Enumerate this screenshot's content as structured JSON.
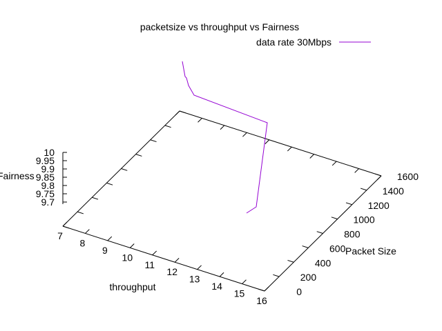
{
  "chart_data": {
    "type": "line",
    "projection": "3d",
    "title": "packetsize vs throughput vs Fairness",
    "xlabel": "throughput",
    "ylabel": "Packet Size",
    "zlabel": "Fairness",
    "xlim": [
      7,
      16
    ],
    "ylim": [
      0,
      1600
    ],
    "zlim": [
      9.65,
      10
    ],
    "x_ticks": [
      "7",
      "8",
      "9",
      "10",
      "11",
      "12",
      "13",
      "14",
      "15",
      "16"
    ],
    "y_ticks": [
      "0",
      "200",
      "400",
      "600",
      "800",
      "1000",
      "1200",
      "1400",
      "1600"
    ],
    "z_ticks": [
      "9.7",
      "9.75",
      "9.8",
      "9.85",
      "9.9",
      "9.95",
      "10"
    ],
    "legend_position": "top-right",
    "grid": false,
    "colors": {
      "series": "#9400d3",
      "axes": "#000000",
      "background": "#ffffff"
    },
    "series": [
      {
        "name": "data rate 30Mbps",
        "points": [
          {
            "x": 10.7,
            "y": 0,
            "z": 10.13
          },
          {
            "x": 10.8,
            "y": 0,
            "z": 10.04
          },
          {
            "x": 10.9,
            "y": 0,
            "z": 10.01
          },
          {
            "x": 11.1,
            "y": 0,
            "z": 9.93
          },
          {
            "x": 15.0,
            "y": 0,
            "z": 9.88
          },
          {
            "x": 14.8,
            "y": 0,
            "z": 9.66
          },
          {
            "x": 14.5,
            "y": 0,
            "z": 9.67
          }
        ]
      }
    ]
  }
}
